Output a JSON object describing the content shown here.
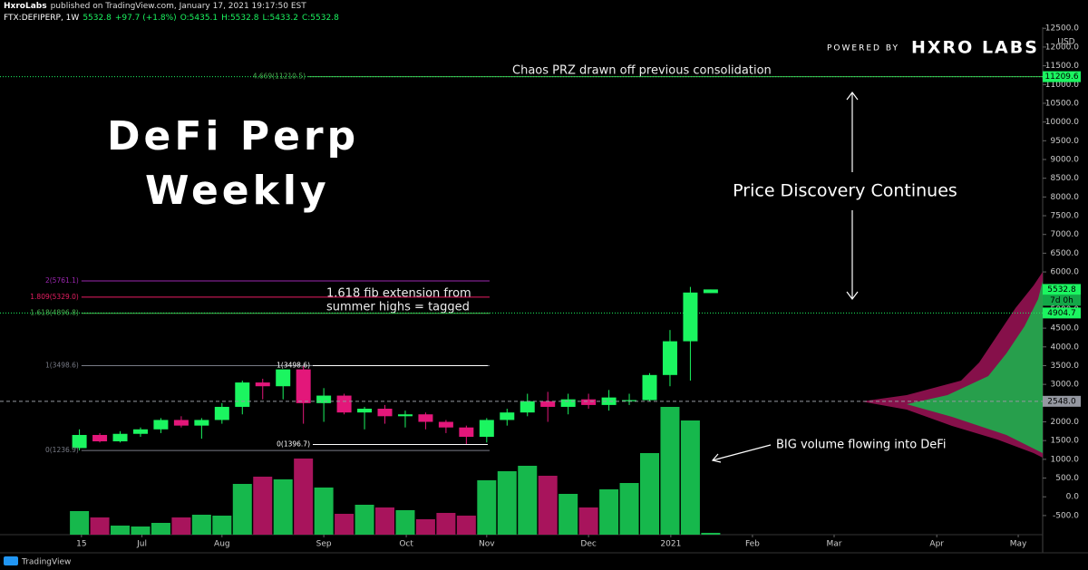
{
  "header": {
    "author": "HxroLabs",
    "published": "published on TradingView.com, January 17, 2021 19:17:50 EST",
    "symbol": "FTX:DEFIPERP, 1W",
    "last": "5532.8",
    "change": "+97.7 (+1.8%)",
    "open": "O:5435.1",
    "high": "H:5532.8",
    "low": "L:5433.2",
    "close": "C:5532.8"
  },
  "logo": {
    "prefix": "POWERED BY",
    "name": "HXRO LABS"
  },
  "footer": {
    "brand": "TradingView"
  },
  "chart_data": {
    "type": "candlestick",
    "title": "DeFi Perp",
    "subtitle": "Weekly",
    "currency": "USD",
    "up_color": "#1bf560",
    "down_color": "#e3177a",
    "volume_up_color": "#16b84c",
    "volume_down_color": "#a8145c",
    "open": [
      1300,
      1650,
      1480,
      1680,
      1800,
      2050,
      1900,
      2050,
      2400,
      3050,
      2950,
      3400,
      2500,
      2700,
      2250,
      2350,
      2150,
      2200,
      2000,
      1850,
      1600,
      2050,
      2250,
      2550,
      2400,
      2600,
      2450,
      2550,
      2580,
      3250,
      4150,
      5435.1
    ],
    "high": [
      1800,
      1700,
      1750,
      1850,
      2100,
      2150,
      2100,
      2500,
      3100,
      3150,
      3400,
      3498.6,
      2900,
      2750,
      2400,
      2450,
      2300,
      2250,
      2050,
      1900,
      2100,
      2350,
      2750,
      2800,
      2750,
      2750,
      2850,
      2750,
      3300,
      4450,
      5600,
      5532.8
    ],
    "low": [
      1236.9,
      1450,
      1450,
      1600,
      1700,
      1850,
      1550,
      1950,
      2200,
      2600,
      2600,
      1950,
      2000,
      2200,
      1800,
      1950,
      1850,
      1800,
      1700,
      1396.7,
      1450,
      1900,
      2150,
      2000,
      2200,
      2350,
      2300,
      2450,
      2550,
      2950,
      3100,
      5433.2
    ],
    "close": [
      1650,
      1480,
      1680,
      1800,
      2050,
      1900,
      2050,
      2400,
      3050,
      2950,
      3400,
      2500,
      2700,
      2250,
      2350,
      2150,
      2200,
      2000,
      1850,
      1600,
      2050,
      2250,
      2550,
      2400,
      2600,
      2450,
      2650,
      2580,
      3250,
      4150,
      5450,
      5532.8
    ],
    "volume": [
      26,
      19,
      10,
      9,
      13,
      19,
      22,
      21,
      56,
      64,
      61,
      84,
      52,
      23,
      33,
      30,
      27,
      17,
      24,
      21,
      60,
      70,
      76,
      65,
      45,
      30,
      50,
      57,
      90,
      141,
      126,
      2
    ],
    "volume_lim": [
      0,
      160
    ],
    "xlim": [
      -3.9,
      47.3
    ],
    "xticks": [
      {
        "value": 0.1,
        "label": "15"
      },
      {
        "value": 3.07,
        "label": "Jul"
      },
      {
        "value": 7,
        "label": "Aug"
      },
      {
        "value": 12,
        "label": "Sep"
      },
      {
        "value": 16.05,
        "label": "Oct"
      },
      {
        "value": 20,
        "label": "Nov"
      },
      {
        "value": 25,
        "label": "Dec"
      },
      {
        "value": 29.04,
        "label": "2021"
      },
      {
        "value": 33.05,
        "label": "Feb"
      },
      {
        "value": 37.06,
        "label": "Mar"
      },
      {
        "value": 42.1,
        "label": "Apr"
      },
      {
        "value": 46.1,
        "label": "May"
      }
    ],
    "ylim": [
      -1010,
      12530
    ],
    "yticks": [
      {
        "value": -500,
        "label": "-500.0"
      },
      {
        "value": 0,
        "label": "0.0"
      },
      {
        "value": 500,
        "label": "500.0"
      },
      {
        "value": 1000,
        "label": "1000.0"
      },
      {
        "value": 1500,
        "label": "1500.0"
      },
      {
        "value": 2000,
        "label": "2000.0"
      },
      {
        "value": 2500,
        "label": "2500.0"
      },
      {
        "value": 3000,
        "label": "3000.0"
      },
      {
        "value": 3500,
        "label": "3500.0"
      },
      {
        "value": 4000,
        "label": "4000.0"
      },
      {
        "value": 4500,
        "label": "4500.0"
      },
      {
        "value": 5000,
        "label": "5000.0"
      },
      {
        "value": 5500,
        "label": "5500.0"
      },
      {
        "value": 6000,
        "label": "6000.0"
      },
      {
        "value": 6500,
        "label": "6500.0"
      },
      {
        "value": 7000,
        "label": "7000.0"
      },
      {
        "value": 7500,
        "label": "7500.0"
      },
      {
        "value": 8000,
        "label": "8000.0"
      },
      {
        "value": 8500,
        "label": "8500.0"
      },
      {
        "value": 9000,
        "label": "9000.0"
      },
      {
        "value": 9500,
        "label": "9500.0"
      },
      {
        "value": 10000,
        "label": "10000.0"
      },
      {
        "value": 10500,
        "label": "10500.0"
      },
      {
        "value": 11000,
        "label": "11000.0"
      },
      {
        "value": 11500,
        "label": "11500.0"
      },
      {
        "value": 12000,
        "label": "12000.0"
      },
      {
        "value": 12500,
        "label": "12500.0"
      }
    ],
    "grid": false,
    "levels": [
      {
        "label": "4.669(11210.5)",
        "value": 11210.5,
        "color": "#4caf50",
        "from": 11.24,
        "to": 47.3
      },
      {
        "label": "2(5761.1)",
        "value": 5761.1,
        "color": "#9c27b0",
        "from": 0.1,
        "to": 20.14
      },
      {
        "label": "1.809(5329.0)",
        "value": 5329.0,
        "color": "#e91e63",
        "from": 0.1,
        "to": 20.14
      },
      {
        "label": "1.618(4896.8)",
        "value": 4896.8,
        "color": "#4caf50",
        "from": 0.1,
        "to": 20.14
      },
      {
        "label": "1(3498.6)",
        "value": 3498.6,
        "color": "#787b86",
        "from": 0.1,
        "to": 20.14
      },
      {
        "label": "0(1236.9)",
        "value": 1236.9,
        "color": "#787b86",
        "from": 0.1,
        "to": 20.14
      },
      {
        "label": "1(3498.6)",
        "value": 3498.6,
        "color": "#ffffff",
        "from": 11.46,
        "to": 20.05
      },
      {
        "label": "0(1396.7)",
        "value": 1396.7,
        "color": "#ffffff",
        "from": 11.46,
        "to": 20.05
      }
    ],
    "price_tags": [
      {
        "label": "11209.6",
        "value": 11209.6,
        "color": "#1bf560",
        "line": "dotted"
      },
      {
        "label": "5532.8",
        "value": 5532.8,
        "color": "#1bf560",
        "line": "none"
      },
      {
        "label": "4904.7",
        "value": 4904.7,
        "color": "#1bf560",
        "line": "dotted"
      },
      {
        "label": "2548.0",
        "value": 2548.0,
        "color": "#9598a1",
        "line": "dashed"
      }
    ],
    "countdown": "7d 0h",
    "annotations": [
      "Chaos PRZ drawn off previous consolidation",
      "1.618 fib extension from",
      "summer highs = tagged",
      "Price Discovery Continues",
      "BIG volume flowing into DeFi"
    ]
  }
}
